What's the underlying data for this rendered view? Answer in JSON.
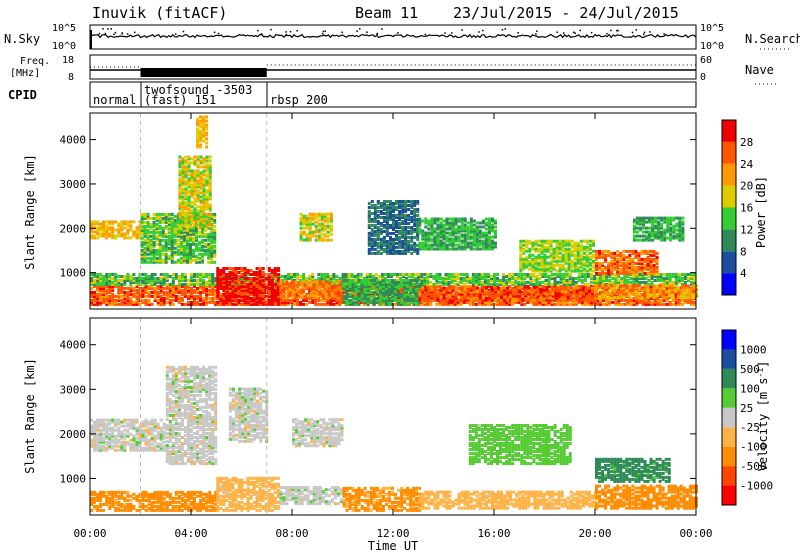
{
  "header": {
    "station": "Inuvik (fitACF)",
    "beam": "Beam 11",
    "dates": "23/Jul/2015 - 24/Jul/2015"
  },
  "colors": {
    "power": [
      "#0000ff",
      "#1c4ea0",
      "#2e8b57",
      "#33cc33",
      "#ddcc00",
      "#ff9900",
      "#ff5500",
      "#ee0000"
    ],
    "velocity": [
      "#ff0000",
      "#ff4500",
      "#ff8c00",
      "#ffb347",
      "#c8c8c8",
      "#55cc33",
      "#2e8b57",
      "#1c4ea0",
      "#0000ff"
    ]
  },
  "panels": {
    "nsky": {
      "label": "N.Sky",
      "right_label": "N.Search",
      "left_ticks": [
        "10^5",
        "10^0"
      ],
      "right_ticks": [
        "10^5",
        "10^0"
      ]
    },
    "freq": {
      "label_top": "Freq.",
      "label_unit": "[MHz]",
      "right_label": "Nave",
      "left_ticks": [
        "18",
        "8"
      ],
      "right_ticks": [
        "60",
        "0"
      ]
    },
    "cpid": {
      "label": "CPID",
      "modes": [
        {
          "name": "normal",
          "start": 0,
          "end": 2
        },
        {
          "name": "twofsound  -3503",
          "sub": "(fast) 151",
          "start": 2,
          "end": 7
        },
        {
          "name": "rbsp 200",
          "start": 7,
          "end": 24
        }
      ]
    }
  },
  "chart_data": [
    {
      "type": "heatmap",
      "title": "",
      "ylabel": "Slant Range [km]",
      "xlabel": "",
      "yticks": [
        1000,
        2000,
        3000,
        4000
      ],
      "ylim": [
        180,
        4600
      ],
      "xlim": [
        0,
        24
      ],
      "colorbar": {
        "label": "Power [dB]",
        "ticks": [
          4,
          8,
          12,
          16,
          20,
          24,
          28
        ],
        "range": [
          0,
          32
        ]
      },
      "regions": [
        {
          "t0": 0,
          "t1": 24,
          "r0": 250,
          "r1": 700,
          "value": 26
        },
        {
          "t0": 0,
          "t1": 24,
          "r0": 700,
          "r1": 950,
          "value": 14
        },
        {
          "t0": 5,
          "t1": 7.5,
          "r0": 250,
          "r1": 1100,
          "value": 30
        },
        {
          "t0": 7.5,
          "t1": 10,
          "r0": 400,
          "r1": 800,
          "value": 24
        },
        {
          "t0": 10,
          "t1": 13,
          "r0": 250,
          "r1": 800,
          "value": 12
        },
        {
          "t0": 13,
          "t1": 20,
          "r0": 350,
          "r1": 650,
          "value": 26
        },
        {
          "t0": 20,
          "t1": 24,
          "r0": 400,
          "r1": 700,
          "value": 22
        },
        {
          "t0": 20,
          "t1": 22.5,
          "r0": 950,
          "r1": 1450,
          "value": 25
        },
        {
          "t0": 0,
          "t1": 2,
          "r0": 1750,
          "r1": 2150,
          "value": 20
        },
        {
          "t0": 2,
          "t1": 5,
          "r0": 1200,
          "r1": 2300,
          "value": 14
        },
        {
          "t0": 3.5,
          "t1": 4.8,
          "r0": 2000,
          "r1": 3600,
          "value": 18
        },
        {
          "t0": 4.2,
          "t1": 4.6,
          "r0": 3800,
          "r1": 4500,
          "value": 20
        },
        {
          "t0": 8.3,
          "t1": 9.5,
          "r0": 1700,
          "r1": 2300,
          "value": 18
        },
        {
          "t0": 11,
          "t1": 13,
          "r0": 1400,
          "r1": 2600,
          "value": 8
        },
        {
          "t0": 13,
          "t1": 16,
          "r0": 1500,
          "r1": 2200,
          "value": 12
        },
        {
          "t0": 17,
          "t1": 20,
          "r0": 1000,
          "r1": 1700,
          "value": 16
        },
        {
          "t0": 21.5,
          "t1": 23.5,
          "r0": 1700,
          "r1": 2200,
          "value": 12
        }
      ]
    },
    {
      "type": "heatmap",
      "title": "",
      "ylabel": "Slant Range [km]",
      "xlabel": "Time UT",
      "yticks": [
        1000,
        2000,
        3000,
        4000
      ],
      "ylim": [
        180,
        4600
      ],
      "xlim": [
        0,
        24
      ],
      "xticks": [
        "00:00",
        "04:00",
        "08:00",
        "12:00",
        "16:00",
        "20:00",
        "00:00"
      ],
      "colorbar": {
        "label": "Velocity [m s^-1]",
        "ticks": [
          1000,
          500,
          100,
          25,
          -25,
          -100,
          -500,
          -1000
        ],
        "levels": [
          -1500,
          -1000,
          -500,
          -100,
          -25,
          25,
          100,
          500,
          1000,
          1500
        ]
      },
      "regions": [
        {
          "t0": 0,
          "t1": 5,
          "r0": 250,
          "r1": 700,
          "value": -200
        },
        {
          "t0": 5,
          "t1": 7.5,
          "r0": 250,
          "r1": 1000,
          "value": -60
        },
        {
          "t0": 7.5,
          "t1": 10,
          "r0": 400,
          "r1": 800,
          "value": 0
        },
        {
          "t0": 10,
          "t1": 13,
          "r0": 250,
          "r1": 750,
          "value": -150
        },
        {
          "t0": 13,
          "t1": 20,
          "r0": 300,
          "r1": 700,
          "value": -60
        },
        {
          "t0": 20,
          "t1": 24,
          "r0": 300,
          "r1": 800,
          "value": -300
        },
        {
          "t0": 20,
          "t1": 23,
          "r0": 900,
          "r1": 1400,
          "value": 200
        },
        {
          "t0": 0,
          "t1": 3,
          "r0": 1600,
          "r1": 2300,
          "value": 0
        },
        {
          "t0": 3,
          "t1": 5,
          "r0": 1300,
          "r1": 3500,
          "value": 0
        },
        {
          "t0": 5.5,
          "t1": 7,
          "r0": 1800,
          "r1": 3000,
          "value": 0
        },
        {
          "t0": 8,
          "t1": 10,
          "r0": 1700,
          "r1": 2300,
          "value": 0
        },
        {
          "t0": 15,
          "t1": 19,
          "r0": 1300,
          "r1": 2200,
          "value": 60
        }
      ]
    }
  ]
}
